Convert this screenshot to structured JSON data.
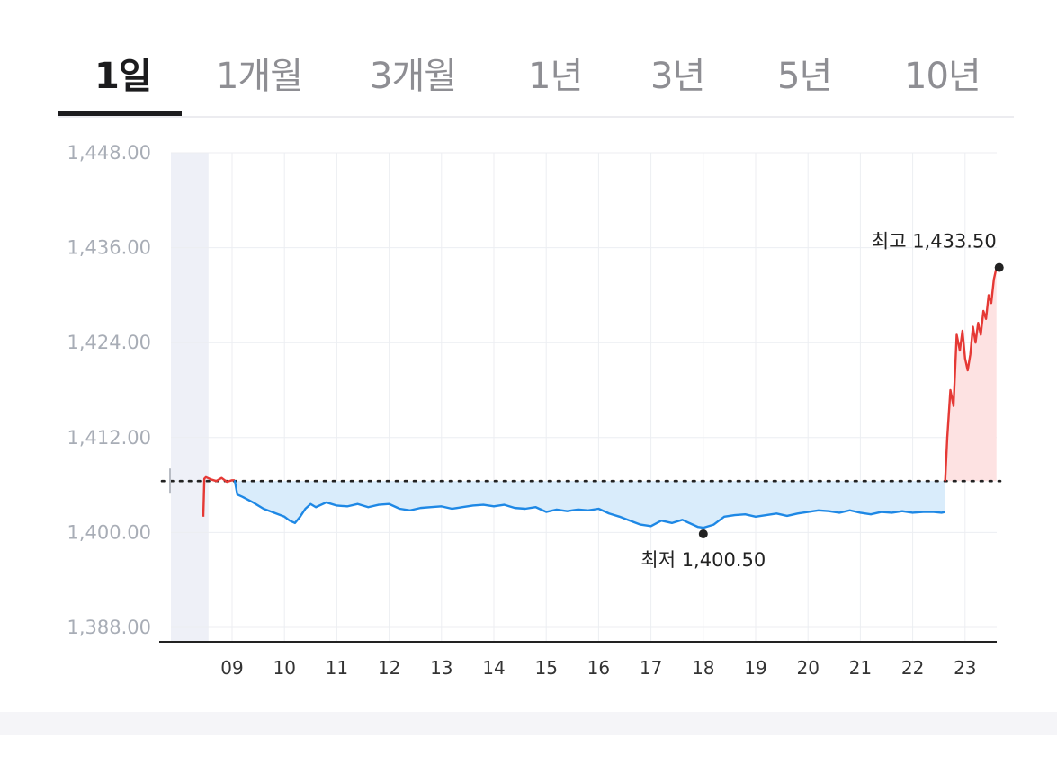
{
  "tabs": [
    {
      "label": "1일",
      "active": true
    },
    {
      "label": "1개월",
      "active": false
    },
    {
      "label": "3개월",
      "active": false
    },
    {
      "label": "1년",
      "active": false
    },
    {
      "label": "3년",
      "active": false
    },
    {
      "label": "5년",
      "active": false
    },
    {
      "label": "10년",
      "active": false
    }
  ],
  "chart_data": {
    "type": "line",
    "y_ticks": [
      "1,448.00",
      "1,436.00",
      "1,424.00",
      "1,412.00",
      "1,400.00",
      "1,388.00"
    ],
    "ylim": [
      1388,
      1448
    ],
    "x_ticks": [
      "09",
      "10",
      "11",
      "12",
      "13",
      "14",
      "15",
      "16",
      "17",
      "18",
      "19",
      "20",
      "21",
      "22",
      "23"
    ],
    "xlim": [
      8.3,
      23.7
    ],
    "baseline": 1406.5,
    "high_label": "최고 1,433.50",
    "high": {
      "x": 23.6,
      "y": 1433.5
    },
    "low_label": "최저 1,400.50",
    "low": {
      "x": 18.0,
      "y": 1400.5
    },
    "colors": {
      "up": "#e53935",
      "down": "#1e88e5",
      "up_fill": "#fde2e2",
      "down_fill": "#d9ecfb"
    },
    "series": [
      {
        "x": [
          8.45,
          8.47,
          8.5,
          8.6,
          8.7,
          8.8,
          8.9,
          9.0,
          9.05
        ],
        "y": [
          1402,
          1406.8,
          1407,
          1406.7,
          1406.5,
          1406.9,
          1406.4,
          1406.6,
          1406.6
        ]
      },
      {
        "x": [
          9.05,
          9.1,
          9.2,
          9.4,
          9.6,
          9.8,
          10.0,
          10.1,
          10.2,
          10.3,
          10.4,
          10.5,
          10.6,
          10.8,
          11.0,
          11.2,
          11.4,
          11.6,
          11.8,
          12.0,
          12.2,
          12.4,
          12.6,
          12.8,
          13.0,
          13.2,
          13.4,
          13.6,
          13.8,
          14.0,
          14.2,
          14.4,
          14.6,
          14.8,
          15.0,
          15.2,
          15.4,
          15.6,
          15.8,
          16.0,
          16.2,
          16.4,
          16.6,
          16.8,
          17.0,
          17.2,
          17.4,
          17.6,
          17.8,
          17.9,
          18.0,
          18.2,
          18.4,
          18.6,
          18.8,
          19.0,
          19.2,
          19.4,
          19.6,
          19.8,
          20.0,
          20.2,
          20.4,
          20.6,
          20.8,
          21.0,
          21.2,
          21.4,
          21.6,
          21.8,
          22.0,
          22.2,
          22.4,
          22.55,
          22.62
        ],
        "y": [
          1406.6,
          1404.8,
          1404.5,
          1403.8,
          1403.0,
          1402.5,
          1402.0,
          1401.5,
          1401.2,
          1402.0,
          1403.0,
          1403.6,
          1403.2,
          1403.8,
          1403.4,
          1403.3,
          1403.6,
          1403.2,
          1403.5,
          1403.6,
          1403.0,
          1402.8,
          1403.1,
          1403.2,
          1403.3,
          1403.0,
          1403.2,
          1403.4,
          1403.5,
          1403.3,
          1403.5,
          1403.1,
          1403.0,
          1403.2,
          1402.6,
          1402.9,
          1402.7,
          1402.9,
          1402.8,
          1403.0,
          1402.4,
          1402.0,
          1401.5,
          1401.0,
          1400.8,
          1401.5,
          1401.2,
          1401.6,
          1401.0,
          1400.7,
          1400.6,
          1401.0,
          1402.0,
          1402.2,
          1402.3,
          1402.0,
          1402.2,
          1402.4,
          1402.1,
          1402.4,
          1402.6,
          1402.8,
          1402.7,
          1402.5,
          1402.8,
          1402.5,
          1402.3,
          1402.6,
          1402.5,
          1402.7,
          1402.5,
          1402.6,
          1402.6,
          1402.5,
          1402.6
        ]
      },
      {
        "x": [
          22.62,
          22.66,
          22.72,
          22.78,
          22.84,
          22.9,
          22.95,
          23.0,
          23.05,
          23.1,
          23.15,
          23.2,
          23.25,
          23.3,
          23.35,
          23.4,
          23.45,
          23.5,
          23.55,
          23.6
        ],
        "y": [
          1406.5,
          1412.0,
          1418.0,
          1416.0,
          1425.0,
          1423.0,
          1425.5,
          1422.0,
          1420.5,
          1422.5,
          1426.0,
          1424.0,
          1426.5,
          1425.0,
          1428.0,
          1427.0,
          1430.0,
          1429.0,
          1432.0,
          1433.5
        ]
      }
    ]
  }
}
